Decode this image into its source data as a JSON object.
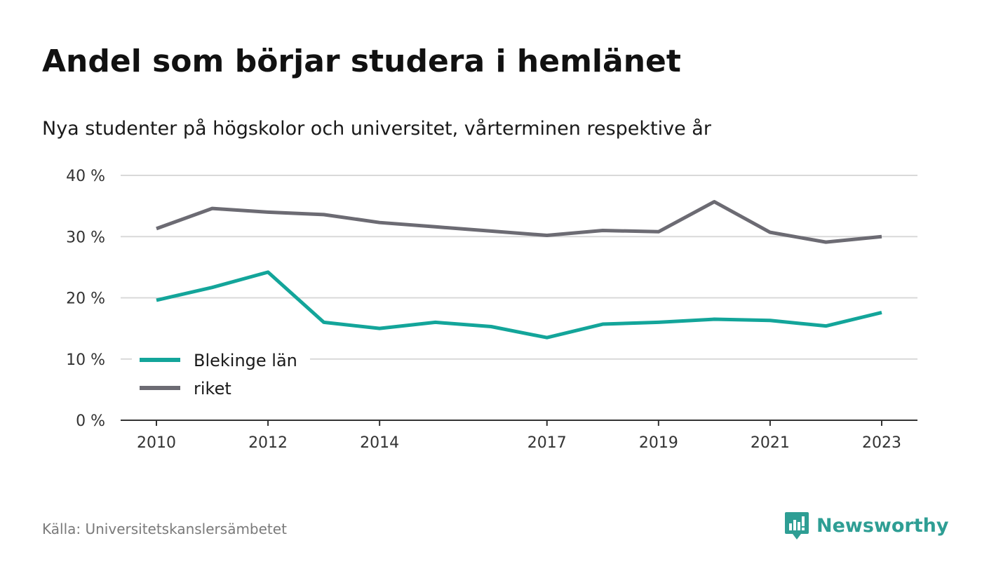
{
  "title": "Andel som börjar studera i hemlänet",
  "subtitle": "Nya studenter på högskolor och universitet, vårterminen respektive år",
  "source": "Källa: Universitetskanslersämbetet",
  "brand": {
    "name": "Newsworthy",
    "icon": "newsworthy-logo-icon",
    "color": "#2e9e94"
  },
  "chart_data": {
    "type": "line",
    "x": [
      2010,
      2011,
      2012,
      2013,
      2014,
      2015,
      2016,
      2017,
      2018,
      2019,
      2020,
      2021,
      2022,
      2023
    ],
    "x_ticks": [
      "2010",
      "2012",
      "2014",
      "2017",
      "2019",
      "2021",
      "2023"
    ],
    "y_ticks": [
      "0 %",
      "10 %",
      "20 %",
      "30 %",
      "40 %"
    ],
    "ylim": [
      0,
      40
    ],
    "grid": true,
    "legend_position": "bottom-left",
    "series": [
      {
        "name": "Blekinge län",
        "color": "#13a59a",
        "values": [
          19.6,
          21.7,
          24.2,
          16.0,
          15.0,
          16.0,
          15.3,
          13.5,
          15.7,
          16.0,
          16.5,
          16.3,
          15.4,
          17.6
        ]
      },
      {
        "name": "riket",
        "color": "#6c6b73",
        "values": [
          31.3,
          34.6,
          34.0,
          33.6,
          32.3,
          31.6,
          30.9,
          30.2,
          31.0,
          30.8,
          35.7,
          30.7,
          29.1,
          30.0
        ]
      }
    ]
  }
}
